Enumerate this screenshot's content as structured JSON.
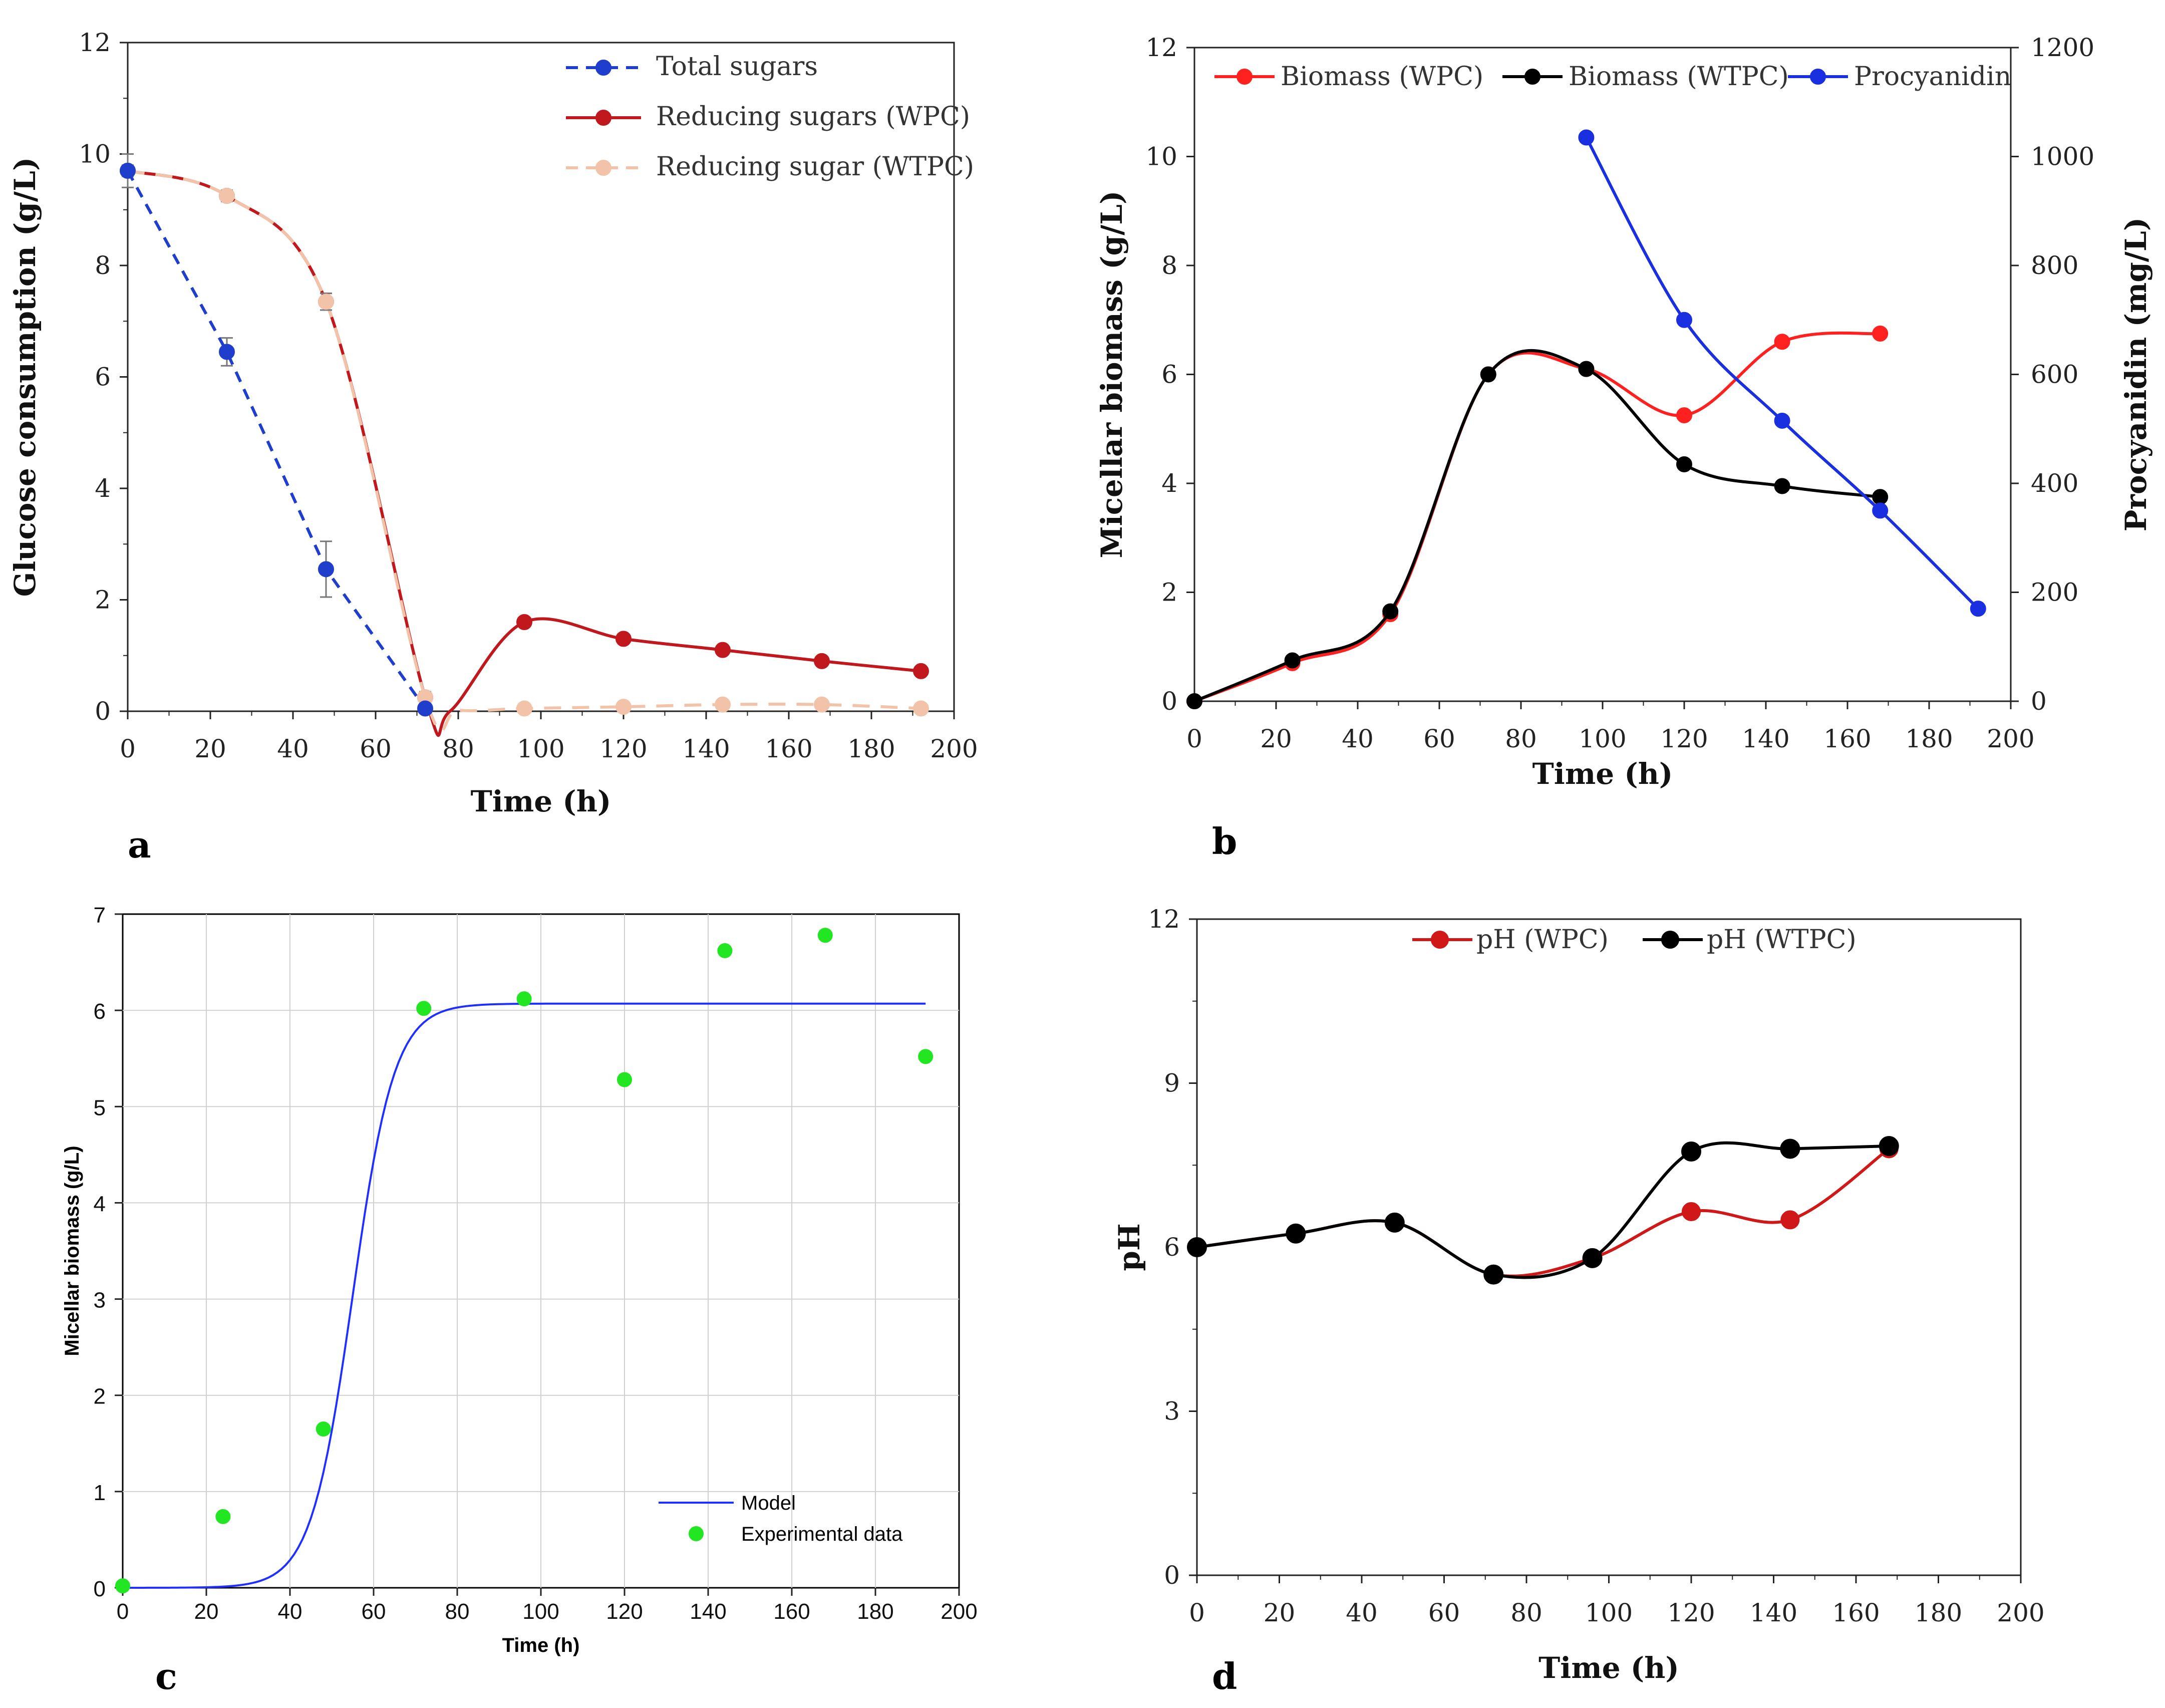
{
  "chart_data": [
    {
      "panel_label": "a",
      "type": "line",
      "xlabel": "Time (h)",
      "ylabel": "Glucose consumption  (g/L)",
      "xlim": [
        0,
        200
      ],
      "ylim": [
        0,
        12
      ],
      "xticks": [
        0,
        20,
        40,
        60,
        80,
        100,
        120,
        140,
        160,
        180,
        200
      ],
      "yticks": [
        0,
        2,
        4,
        6,
        8,
        10,
        12
      ],
      "grid": false,
      "legend": "top-right",
      "series": [
        {
          "name": "Total sugars",
          "color": "#1f3ecc",
          "style": "dashed",
          "x": [
            0,
            24,
            48,
            72
          ],
          "y": [
            9.7,
            6.45,
            2.55,
            0.05
          ],
          "err": [
            0.3,
            0.25,
            0.5,
            0.05
          ]
        },
        {
          "name": "Reducing sugars (WPC)",
          "color": "#c0181c",
          "style": "solid",
          "x": [
            0,
            24,
            48,
            72,
            96,
            120,
            144,
            168,
            192
          ],
          "y": [
            9.7,
            9.25,
            7.35,
            0.25,
            1.6,
            1.3,
            1.1,
            0.9,
            0.72
          ],
          "err": [
            0.1,
            0.1,
            0.15,
            0.1,
            0.08,
            0.06,
            0.06,
            0.05,
            0.05
          ]
        },
        {
          "name": "Reducing sugar (WTPC)",
          "color": "#f2c3a8",
          "style": "dashed",
          "x": [
            0,
            24,
            48,
            72,
            96,
            120,
            144,
            168,
            192
          ],
          "y": [
            9.7,
            9.25,
            7.35,
            0.25,
            0.05,
            0.08,
            0.12,
            0.12,
            0.05
          ],
          "err": [
            0.1,
            0.1,
            0.15,
            0.1,
            0.03,
            0.03,
            0.03,
            0.03,
            0.03
          ]
        }
      ]
    },
    {
      "panel_label": "b",
      "type": "line",
      "xlabel": "Time (h)",
      "ylabel": "Micellar biomass (g/L)",
      "ylabel_right": "Procyanidin (mg/L)",
      "xlim": [
        0,
        200
      ],
      "ylim": [
        0,
        12
      ],
      "ylim_right": [
        0,
        1200
      ],
      "xticks": [
        0,
        20,
        40,
        60,
        80,
        100,
        120,
        140,
        160,
        180,
        200
      ],
      "yticks": [
        0,
        2,
        4,
        6,
        8,
        10,
        12
      ],
      "yticks_right": [
        0,
        200,
        400,
        600,
        800,
        1000,
        1200
      ],
      "grid": false,
      "legend": "top",
      "series": [
        {
          "name": "Biomass (WPC)",
          "color": "#ff2020",
          "axis": "left",
          "x": [
            0,
            24,
            48,
            72,
            96,
            120,
            144,
            168
          ],
          "y": [
            0,
            0.7,
            1.6,
            6.0,
            6.1,
            5.25,
            6.6,
            6.75
          ]
        },
        {
          "name": "Biomass (WTPC)",
          "color": "#000000",
          "axis": "left",
          "x": [
            0,
            24,
            48,
            72,
            96,
            120,
            144,
            168
          ],
          "y": [
            0,
            0.75,
            1.65,
            6.0,
            6.1,
            4.35,
            3.95,
            3.75
          ]
        },
        {
          "name": "Procyanidin",
          "color": "#1a2fe0",
          "axis": "right",
          "x": [
            96,
            120,
            144,
            168,
            192
          ],
          "y": [
            1035,
            700,
            515,
            350,
            170
          ]
        }
      ]
    },
    {
      "panel_label": "c",
      "type": "scatter",
      "xlabel": "Time (h)",
      "ylabel": "Micellar biomass (g/L)",
      "xlim": [
        0,
        200
      ],
      "ylim": [
        0,
        7
      ],
      "xticks": [
        0,
        20,
        40,
        60,
        80,
        100,
        120,
        140,
        160,
        180,
        200
      ],
      "yticks": [
        0,
        1,
        2,
        3,
        4,
        5,
        6,
        7
      ],
      "grid": true,
      "legend": "bottom-right",
      "series": [
        {
          "name": "Model",
          "kind": "line",
          "color": "#1f2fff",
          "model": {
            "K": 6.07,
            "r": 0.2,
            "t0": 55
          },
          "x_range": [
            0,
            192
          ]
        },
        {
          "name": "Experimental data",
          "kind": "scatter",
          "color": "#22e622",
          "x": [
            0,
            24,
            48,
            72,
            96,
            120,
            144,
            168,
            192
          ],
          "y": [
            0.02,
            0.74,
            1.65,
            6.02,
            6.12,
            5.28,
            6.62,
            6.78,
            5.52
          ]
        }
      ]
    },
    {
      "panel_label": "d",
      "type": "line",
      "xlabel": "Time (h)",
      "ylabel": "pH",
      "xlim": [
        0,
        200
      ],
      "ylim": [
        0,
        12
      ],
      "xticks": [
        0,
        20,
        40,
        60,
        80,
        100,
        120,
        140,
        160,
        180,
        200
      ],
      "yticks": [
        0,
        3,
        6,
        9,
        12
      ],
      "grid": false,
      "legend": "top",
      "series": [
        {
          "name": "pH (WPC)",
          "color": "#d01818",
          "x": [
            0,
            24,
            48,
            72,
            96,
            120,
            144,
            168
          ],
          "y": [
            6.0,
            6.25,
            6.45,
            5.5,
            5.8,
            6.65,
            6.5,
            7.8
          ]
        },
        {
          "name": "pH (WTPC)",
          "color": "#000000",
          "x": [
            0,
            24,
            48,
            72,
            96,
            120,
            144,
            168
          ],
          "y": [
            6.0,
            6.25,
            6.45,
            5.5,
            5.8,
            7.75,
            7.8,
            7.85
          ]
        }
      ]
    }
  ]
}
